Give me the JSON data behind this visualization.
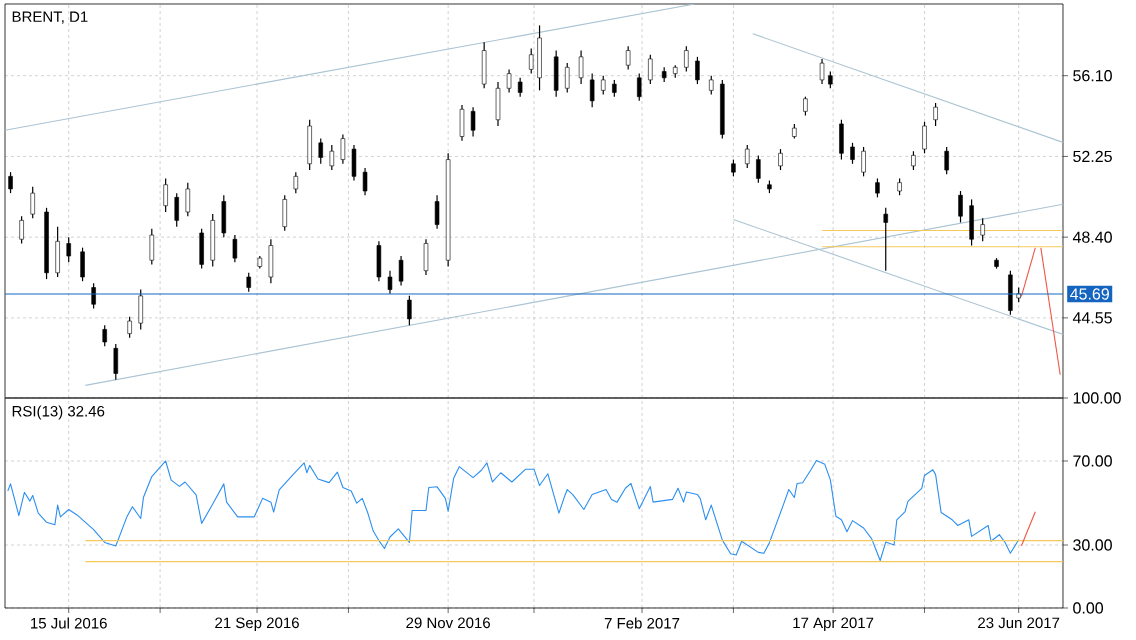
{
  "chart_data": [
    {
      "type": "candlestick",
      "title": "BRENT, D1",
      "color": "#000000",
      "x": [
        "2016-06-24",
        "2016-06-28",
        "2016-07-02",
        "2016-07-07",
        "2016-07-11",
        "2016-07-15",
        "2016-07-20",
        "2016-07-24",
        "2016-07-28",
        "2016-08-01",
        "2016-08-06",
        "2016-08-10",
        "2016-08-14",
        "2016-08-19",
        "2016-08-23",
        "2016-08-27",
        "2016-09-01",
        "2016-09-05",
        "2016-09-09",
        "2016-09-13",
        "2016-09-18",
        "2016-09-22",
        "2016-09-26",
        "2016-10-01",
        "2016-10-05",
        "2016-10-10",
        "2016-10-14",
        "2016-10-18",
        "2016-10-22",
        "2016-10-26",
        "2016-10-30",
        "2016-11-04",
        "2016-11-08",
        "2016-11-12",
        "2016-11-15",
        "2016-11-21",
        "2016-11-25",
        "2016-11-29",
        "2016-12-04",
        "2016-12-08",
        "2016-12-12",
        "2016-12-17",
        "2016-12-21",
        "2016-12-25",
        "2016-12-29",
        "2017-01-01",
        "2017-01-07",
        "2017-01-11",
        "2017-01-16",
        "2017-01-20",
        "2017-01-24",
        "2017-01-28",
        "2017-02-02",
        "2017-02-06",
        "2017-02-10",
        "2017-02-15",
        "2017-02-19",
        "2017-02-23",
        "2017-02-27",
        "2017-03-04",
        "2017-03-08",
        "2017-03-12",
        "2017-03-17",
        "2017-03-21",
        "2017-03-25",
        "2017-03-29",
        "2017-04-03",
        "2017-04-07",
        "2017-04-13",
        "2017-04-16",
        "2017-04-20",
        "2017-04-24",
        "2017-04-28",
        "2017-05-03",
        "2017-05-06",
        "2017-05-11",
        "2017-05-16",
        "2017-05-20",
        "2017-05-24",
        "2017-05-28",
        "2017-06-02",
        "2017-06-06",
        "2017-06-10",
        "2017-06-15",
        "2017-06-20",
        "2017-06-23"
      ],
      "ohlc": [
        [
          51.3,
          51.5,
          50.5,
          50.7
        ],
        [
          48.3,
          49.4,
          48.1,
          49.2
        ],
        [
          49.5,
          50.8,
          49.3,
          50.5
        ],
        [
          49.6,
          49.8,
          46.4,
          46.7
        ],
        [
          46.7,
          48.9,
          46.5,
          48.2
        ],
        [
          48.1,
          48.4,
          47.2,
          47.5
        ],
        [
          47.7,
          47.9,
          46.3,
          46.5
        ],
        [
          46.0,
          46.2,
          45.0,
          45.2
        ],
        [
          44.0,
          44.2,
          43.2,
          43.4
        ],
        [
          43.1,
          43.3,
          41.6,
          41.9
        ],
        [
          43.8,
          44.6,
          43.6,
          44.4
        ],
        [
          44.3,
          45.9,
          44.0,
          45.6
        ],
        [
          47.3,
          48.8,
          47.1,
          48.5
        ],
        [
          49.9,
          51.2,
          49.6,
          50.9
        ],
        [
          50.3,
          50.5,
          48.9,
          49.2
        ],
        [
          49.6,
          51.0,
          49.4,
          50.7
        ],
        [
          48.6,
          48.8,
          46.9,
          47.1
        ],
        [
          47.3,
          49.5,
          47.0,
          49.2
        ],
        [
          50.1,
          50.4,
          48.4,
          48.6
        ],
        [
          48.3,
          48.5,
          47.2,
          47.4
        ],
        [
          46.5,
          46.7,
          45.8,
          46.0
        ],
        [
          47.0,
          47.5,
          46.9,
          47.4
        ],
        [
          46.5,
          48.3,
          46.2,
          48.0
        ],
        [
          48.9,
          50.4,
          48.7,
          50.2
        ],
        [
          50.7,
          51.5,
          50.5,
          51.3
        ],
        [
          51.9,
          54.0,
          51.6,
          53.7
        ],
        [
          52.9,
          53.1,
          51.9,
          52.2
        ],
        [
          51.8,
          52.8,
          51.6,
          52.5
        ],
        [
          52.1,
          53.3,
          51.9,
          53.1
        ],
        [
          52.6,
          52.8,
          51.1,
          51.3
        ],
        [
          51.5,
          51.7,
          50.4,
          50.6
        ],
        [
          48.0,
          48.2,
          46.3,
          46.5
        ],
        [
          46.5,
          46.8,
          45.7,
          45.9
        ],
        [
          47.3,
          47.5,
          46.1,
          46.3
        ],
        [
          45.4,
          45.6,
          44.2,
          44.5
        ],
        [
          46.8,
          48.3,
          46.6,
          48.1
        ],
        [
          50.1,
          50.4,
          48.8,
          49.0
        ],
        [
          47.3,
          52.4,
          47.0,
          52.1
        ],
        [
          53.2,
          54.7,
          53.0,
          54.5
        ],
        [
          54.4,
          54.6,
          53.2,
          53.5
        ],
        [
          55.7,
          57.7,
          55.5,
          57.3
        ],
        [
          54.0,
          55.8,
          53.7,
          55.5
        ],
        [
          55.5,
          56.4,
          55.3,
          56.2
        ],
        [
          55.8,
          56.0,
          55.1,
          55.3
        ],
        [
          56.4,
          57.4,
          56.2,
          57.1
        ],
        [
          56.0,
          58.5,
          55.4,
          57.9
        ],
        [
          57.0,
          57.3,
          55.1,
          55.4
        ],
        [
          55.5,
          56.7,
          55.3,
          56.5
        ],
        [
          56.0,
          57.3,
          55.7,
          57.0
        ],
        [
          55.9,
          56.2,
          54.6,
          54.9
        ],
        [
          55.4,
          56.1,
          55.2,
          55.9
        ],
        [
          55.7,
          55.9,
          55.1,
          55.3
        ],
        [
          56.6,
          57.5,
          56.4,
          57.3
        ],
        [
          56.0,
          56.2,
          54.9,
          55.1
        ],
        [
          55.9,
          57.1,
          55.7,
          56.9
        ],
        [
          56.3,
          56.5,
          55.8,
          56.0
        ],
        [
          56.2,
          56.6,
          56.0,
          56.5
        ],
        [
          56.5,
          57.5,
          56.3,
          57.3
        ],
        [
          56.8,
          57.0,
          55.7,
          55.9
        ],
        [
          55.4,
          56.1,
          55.2,
          55.9
        ],
        [
          55.7,
          55.9,
          53.1,
          53.3
        ],
        [
          51.9,
          52.1,
          51.3,
          51.5
        ],
        [
          51.9,
          52.8,
          51.7,
          52.6
        ],
        [
          52.1,
          52.3,
          51.0,
          51.2
        ],
        [
          50.9,
          51.1,
          50.5,
          50.7
        ],
        [
          51.8,
          52.6,
          51.6,
          52.4
        ],
        [
          53.2,
          53.8,
          53.1,
          53.6
        ],
        [
          54.4,
          55.1,
          54.2,
          55.0
        ],
        [
          55.9,
          56.9,
          55.7,
          56.7
        ],
        [
          56.1,
          56.3,
          55.5,
          55.7
        ],
        [
          53.8,
          54.0,
          52.1,
          52.4
        ],
        [
          52.7,
          52.9,
          51.9,
          52.1
        ],
        [
          51.5,
          52.7,
          51.3,
          52.5
        ],
        [
          51.0,
          51.2,
          50.3,
          50.5
        ],
        [
          49.5,
          49.8,
          46.8,
          49.1
        ],
        [
          50.6,
          51.2,
          50.4,
          51.0
        ],
        [
          51.8,
          52.5,
          51.6,
          52.3
        ],
        [
          52.6,
          53.9,
          52.4,
          53.7
        ],
        [
          54.0,
          54.8,
          53.7,
          54.6
        ],
        [
          52.5,
          52.7,
          51.4,
          51.6
        ],
        [
          50.4,
          50.6,
          49.1,
          49.4
        ],
        [
          49.9,
          50.2,
          48.0,
          48.3
        ],
        [
          48.5,
          49.3,
          48.2,
          49.0
        ],
        [
          47.3,
          47.4,
          46.9,
          47.0
        ],
        [
          46.6,
          46.8,
          44.7,
          44.9
        ],
        [
          45.5,
          46.0,
          45.3,
          45.7
        ]
      ],
      "series": [
        {
          "type": "line",
          "color": "#aac3d3",
          "x": [
            "2016-06-22",
            "2017-02-26"
          ],
          "values": [
            53.5,
            59.52
          ]
        },
        {
          "type": "line",
          "color": "#aac3d3",
          "x": [
            "2016-07-21",
            "2017-07-09"
          ],
          "values": [
            41.33,
            49.97
          ]
        },
        {
          "type": "line",
          "color": "#aac3d3",
          "x": [
            "2017-03-19",
            "2017-07-09"
          ],
          "values": [
            58.1,
            52.92
          ]
        },
        {
          "type": "line",
          "color": "#aac3d3",
          "x": [
            "2017-03-12",
            "2017-07-09"
          ],
          "values": [
            49.24,
            43.76
          ]
        },
        {
          "type": "line",
          "color": "#f5c85c",
          "x": [
            "2017-04-13",
            "2017-07-09"
          ],
          "values": [
            48.72,
            48.72
          ]
        },
        {
          "type": "line",
          "color": "#f5c85c",
          "x": [
            "2017-04-13",
            "2017-07-09"
          ],
          "values": [
            47.94,
            47.94
          ]
        },
        {
          "type": "line",
          "color": "#f05545",
          "x": [
            "2017-06-24",
            "2017-06-29"
          ],
          "values": [
            45.58,
            47.89
          ]
        },
        {
          "type": "line",
          "color": "#f05545",
          "x": [
            "2017-07-01",
            "2017-07-08"
          ],
          "values": [
            47.89,
            41.84
          ]
        }
      ],
      "ref_lines": [
        {
          "axis": "y",
          "value": 45.69,
          "label": "45.69",
          "color": "#1565c0"
        }
      ],
      "xlim": [
        "2016-06-22",
        "2017-07-09"
      ],
      "xticks": [
        {
          "value": "2016-07-15",
          "label": null
        },
        {
          "value": "2016-08-17",
          "label": null
        },
        {
          "value": "2016-09-21",
          "label": null
        },
        {
          "value": "2016-10-24",
          "label": null
        },
        {
          "value": "2016-11-29",
          "label": null
        },
        {
          "value": "2016-12-30",
          "label": null
        },
        {
          "value": "2017-02-07",
          "label": null
        },
        {
          "value": "2017-03-12",
          "label": null
        },
        {
          "value": "2017-04-17",
          "label": null
        },
        {
          "value": "2017-05-20",
          "label": null
        },
        {
          "value": "2017-06-23",
          "label": null
        }
      ],
      "ylim": [
        40.73,
        59.52
      ],
      "yticks": [
        44.55,
        {
          "value": 48.4,
          "label": "48.40"
        },
        52.25,
        {
          "value": 56.1,
          "label": "56.10"
        }
      ],
      "grid": true,
      "tick_labels": "y"
    },
    {
      "type": "line",
      "title": "RSI(13) 32.46",
      "series": [
        {
          "type": "line",
          "color": "#2b8ff0",
          "x": [
            "2016-06-23",
            "2016-06-24",
            "2016-06-27",
            "2016-06-29",
            "2016-07-01",
            "2016-07-02",
            "2016-07-04",
            "2016-07-07",
            "2016-07-10",
            "2016-07-11",
            "2016-07-12",
            "2016-07-15",
            "2016-07-18",
            "2016-07-24",
            "2016-07-28",
            "2016-08-01",
            "2016-08-05",
            "2016-08-07",
            "2016-08-10",
            "2016-08-11",
            "2016-08-14",
            "2016-08-19",
            "2016-08-21",
            "2016-08-24",
            "2016-08-26",
            "2016-08-30",
            "2016-09-01",
            "2016-09-05",
            "2016-09-09",
            "2016-09-10",
            "2016-09-14",
            "2016-09-20",
            "2016-09-23",
            "2016-09-26",
            "2016-09-27",
            "2016-09-29",
            "2016-10-04",
            "2016-10-08",
            "2016-10-09",
            "2016-10-10",
            "2016-10-13",
            "2016-10-17",
            "2016-10-20",
            "2016-10-22",
            "2016-10-25",
            "2016-10-27",
            "2016-10-29",
            "2016-10-31",
            "2016-11-02",
            "2016-11-04",
            "2016-11-06",
            "2016-11-08",
            "2016-11-11",
            "2016-11-15",
            "2016-11-16",
            "2016-11-21",
            "2016-11-22",
            "2016-11-25",
            "2016-11-28",
            "2016-11-29",
            "2016-12-01",
            "2016-12-03",
            "2016-12-08",
            "2016-12-11",
            "2016-12-13",
            "2016-12-15",
            "2016-12-18",
            "2016-12-22",
            "2016-12-27",
            "2016-12-30",
            "2017-01-01",
            "2017-01-04",
            "2017-01-08",
            "2017-01-10",
            "2017-01-11",
            "2017-01-13",
            "2017-01-17",
            "2017-01-20",
            "2017-01-25",
            "2017-01-27",
            "2017-01-29",
            "2017-02-01",
            "2017-02-03",
            "2017-02-06",
            "2017-02-10",
            "2017-02-11",
            "2017-02-18",
            "2017-02-20",
            "2017-02-22",
            "2017-02-23",
            "2017-02-27",
            "2017-02-28",
            "2017-03-02",
            "2017-03-04",
            "2017-03-08",
            "2017-03-11",
            "2017-03-13",
            "2017-03-15",
            "2017-03-21",
            "2017-03-23",
            "2017-03-25",
            "2017-03-30",
            "2017-04-01",
            "2017-04-03",
            "2017-04-04",
            "2017-04-06",
            "2017-04-09",
            "2017-04-11",
            "2017-04-14",
            "2017-04-16",
            "2017-04-18",
            "2017-04-20",
            "2017-04-22",
            "2017-04-24",
            "2017-04-28",
            "2017-05-01",
            "2017-05-02",
            "2017-05-04",
            "2017-05-06",
            "2017-05-09",
            "2017-05-10",
            "2017-05-13",
            "2017-05-14",
            "2017-05-19",
            "2017-05-20",
            "2017-05-23",
            "2017-05-24",
            "2017-05-26",
            "2017-05-30",
            "2017-06-01",
            "2017-06-05",
            "2017-06-06",
            "2017-06-12",
            "2017-06-13",
            "2017-06-16",
            "2017-06-18",
            "2017-06-20",
            "2017-06-23"
          ],
          "values": [
            55.7,
            59.1,
            44.0,
            55.1,
            50.9,
            53.6,
            45.2,
            40.8,
            39.6,
            49.0,
            43.4,
            46.9,
            44.3,
            37.3,
            31.2,
            29.5,
            43.4,
            48.2,
            42.6,
            52.7,
            62.6,
            70.0,
            60.9,
            57.9,
            60.0,
            53.9,
            40.3,
            49.5,
            59.1,
            50.4,
            43.4,
            43.4,
            52.2,
            50.4,
            45.7,
            56.2,
            63.5,
            69.1,
            64.4,
            67.9,
            61.4,
            59.7,
            64.7,
            57.4,
            55.7,
            49.9,
            52.2,
            45.2,
            36.5,
            32.1,
            28.3,
            33.8,
            37.7,
            31.2,
            46.4,
            46.4,
            57.4,
            57.7,
            52.2,
            46.1,
            61.8,
            67.3,
            62.1,
            65.6,
            69.1,
            60.0,
            64.4,
            60.0,
            66.1,
            66.1,
            58.3,
            63.9,
            45.2,
            53.0,
            56.4,
            54.0,
            46.9,
            54.0,
            56.4,
            51.7,
            50.4,
            57.0,
            59.3,
            47.3,
            57.8,
            50.4,
            51.7,
            57.0,
            50.4,
            55.2,
            54.0,
            52.2,
            42.0,
            49.0,
            32.3,
            25.8,
            25.2,
            31.8,
            26.5,
            26.1,
            31.1,
            49.0,
            56.4,
            52.6,
            59.3,
            59.6,
            65.8,
            70.2,
            68.4,
            61.0,
            43.7,
            42.0,
            36.3,
            41.6,
            38.1,
            32.8,
            29.3,
            22.6,
            31.4,
            30.0,
            42.0,
            45.9,
            50.8,
            57.0,
            63.1,
            65.8,
            63.5,
            45.5,
            42.0,
            39.3,
            42.0,
            34.1,
            39.3,
            31.8,
            34.9,
            31.4,
            26.1,
            32.5
          ]
        },
        {
          "type": "line",
          "color": "#f5c85c",
          "x": [
            "2016-07-21",
            "2017-07-09"
          ],
          "values": [
            32.1,
            32.1
          ]
        },
        {
          "type": "line",
          "color": "#f5c85c",
          "x": [
            "2016-07-21",
            "2017-07-09"
          ],
          "values": [
            22.1,
            22.1
          ]
        },
        {
          "type": "line",
          "color": "#f05545",
          "x": [
            "2017-06-24",
            "2017-06-29"
          ],
          "values": [
            29.6,
            45.8
          ]
        }
      ],
      "xlim": [
        "2016-06-22",
        "2017-07-09"
      ],
      "xticks": [
        {
          "value": "2016-07-15",
          "label": "15 Jul 2016"
        },
        {
          "value": "2016-08-17",
          "label": null
        },
        {
          "value": "2016-09-21",
          "label": "21 Sep 2016"
        },
        {
          "value": "2016-10-24",
          "label": null
        },
        {
          "value": "2016-11-29",
          "label": "29 Nov 2016"
        },
        {
          "value": "2016-12-30",
          "label": null
        },
        {
          "value": "2017-02-07",
          "label": "7 Feb 2017"
        },
        {
          "value": "2017-03-12",
          "label": null
        },
        {
          "value": "2017-04-17",
          "label": "17 Apr 2017"
        },
        {
          "value": "2017-05-20",
          "label": null
        },
        {
          "value": "2017-06-23",
          "label": "23 Jun 2017"
        }
      ],
      "ylim": [
        0,
        100
      ],
      "yticks": [
        {
          "value": 0,
          "label": "0.00"
        },
        {
          "value": 30,
          "label": "30.00"
        },
        {
          "value": 70,
          "label": "70.00"
        },
        {
          "value": 100,
          "label": "100.00"
        }
      ],
      "grid": true
    }
  ]
}
